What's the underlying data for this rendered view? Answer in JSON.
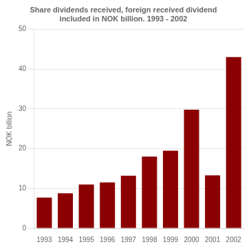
{
  "chart_data": {
    "type": "bar",
    "title": "Share dividends received, foreign received dividend\nincluded in NOK billion. 1993 - 2002",
    "ylabel": "NOK billion",
    "categories": [
      "1993",
      "1994",
      "1995",
      "1996",
      "1997",
      "1998",
      "1999",
      "2000",
      "2001",
      "2002"
    ],
    "values": [
      7.7,
      8.8,
      11.0,
      11.5,
      13.2,
      18.0,
      19.5,
      29.8,
      13.3,
      43.0
    ],
    "color": "#8B0000",
    "ylim": [
      0,
      50
    ],
    "yticks": [
      0,
      10,
      20,
      30,
      40,
      50
    ],
    "grid": true
  }
}
